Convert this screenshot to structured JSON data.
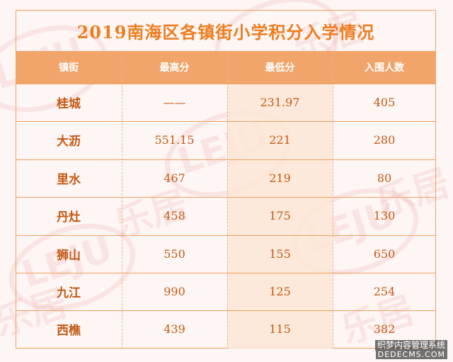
{
  "title": "2019南海区各镇街小学积分入学情况",
  "colors": {
    "accent": "#ee7d1f",
    "header_bg": "#f2a56a",
    "cell_text": "#c45a14",
    "highlight_col": "#fce6d6"
  },
  "table": {
    "headers": [
      "镇街",
      "最高分",
      "最低分",
      "入围人数"
    ],
    "rows": [
      [
        "桂城",
        "——",
        "231.97",
        "405"
      ],
      [
        "大沥",
        "551.15",
        "221",
        "280"
      ],
      [
        "里水",
        "467",
        "219",
        "80"
      ],
      [
        "丹灶",
        "458",
        "175",
        "130"
      ],
      [
        "狮山",
        "550",
        "155",
        "650"
      ],
      [
        "九江",
        "990",
        "125",
        "254"
      ],
      [
        "西樵",
        "439",
        "115",
        "382"
      ]
    ]
  },
  "watermark": {
    "logo_text": "LEJU",
    "brand_text": "乐居"
  },
  "footer": {
    "line1": "织梦内容管理系统",
    "line2": "DEDECMS.COM"
  }
}
